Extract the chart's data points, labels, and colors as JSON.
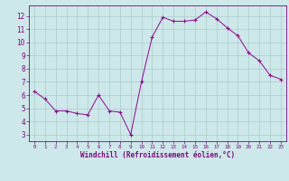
{
  "x": [
    0,
    1,
    2,
    3,
    4,
    5,
    6,
    7,
    8,
    9,
    10,
    11,
    12,
    13,
    14,
    15,
    16,
    17,
    18,
    19,
    20,
    21,
    22,
    23
  ],
  "y": [
    6.3,
    5.7,
    4.8,
    4.8,
    4.6,
    4.5,
    6.0,
    4.8,
    4.7,
    3.0,
    7.0,
    10.4,
    11.9,
    11.6,
    11.6,
    11.7,
    12.3,
    11.8,
    11.1,
    10.5,
    9.2,
    8.6,
    7.5,
    7.2
  ],
  "line_color": "#990099",
  "marker": "+",
  "marker_size": 3,
  "bg_color": "#cce8e8",
  "grid_color": "#aacccc",
  "xlabel": "Windchill (Refroidissement éolien,°C)",
  "xlabel_color": "#880088",
  "tick_color": "#880088",
  "axis_color": "#880088",
  "ylim": [
    2.5,
    12.8
  ],
  "xlim": [
    -0.5,
    23.5
  ],
  "yticks": [
    3,
    4,
    5,
    6,
    7,
    8,
    9,
    10,
    11,
    12
  ],
  "xticks": [
    0,
    1,
    2,
    3,
    4,
    5,
    6,
    7,
    8,
    9,
    10,
    11,
    12,
    13,
    14,
    15,
    16,
    17,
    18,
    19,
    20,
    21,
    22,
    23
  ]
}
